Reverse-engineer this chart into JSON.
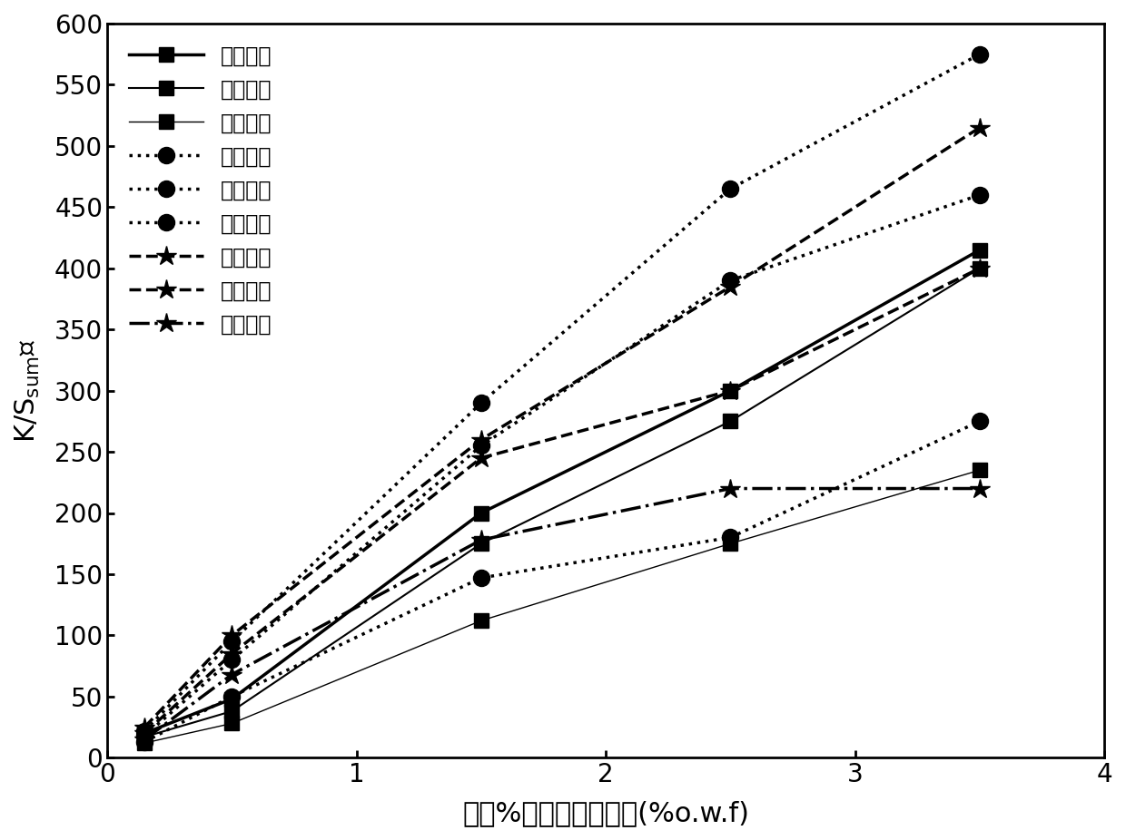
{
  "x_values": [
    0.15,
    0.5,
    1.5,
    2.5,
    3.5
  ],
  "series": [
    {
      "label": "水基紅色",
      "linestyle": "solid",
      "marker": "s",
      "linewidth": 2.5,
      "y": [
        20,
        48,
        200,
        300,
        415
      ]
    },
    {
      "label": "水基黃色",
      "linestyle": "solid",
      "marker": "s",
      "linewidth": 1.5,
      "y": [
        17,
        38,
        175,
        275,
        400
      ]
    },
    {
      "label": "水基藍色",
      "linestyle": "solid",
      "marker": "s",
      "linewidth": 1.0,
      "y": [
        12,
        28,
        112,
        175,
        235
      ]
    },
    {
      "label": "辛烷紅色",
      "linestyle": "dotted",
      "marker": "o",
      "linewidth": 2.5,
      "y": [
        22,
        95,
        290,
        465,
        575
      ]
    },
    {
      "label": "辛烷黃色",
      "linestyle": "dotted",
      "marker": "o",
      "linewidth": 2.5,
      "y": [
        18,
        80,
        255,
        390,
        460
      ]
    },
    {
      "label": "辛烷藍色",
      "linestyle": "dotted",
      "marker": "o",
      "linewidth": 2.5,
      "y": [
        13,
        50,
        147,
        180,
        275
      ]
    },
    {
      "label": "王烷紅色",
      "linestyle": "dashed",
      "marker": "*",
      "linewidth": 2.5,
      "y": [
        25,
        100,
        260,
        385,
        515
      ]
    },
    {
      "label": "王烷黃色",
      "linestyle": "dashed",
      "marker": "*",
      "linewidth": 2.5,
      "y": [
        20,
        85,
        245,
        300,
        400
      ]
    },
    {
      "label": "王烷藍色",
      "linestyle": "dashdot",
      "marker": "*",
      "linewidth": 2.5,
      "y": [
        15,
        68,
        178,
        220,
        220
      ]
    }
  ],
  "xlabel": "染料%對羊毛纖維重量(%o.w.f)",
  "ylabel_main": "K/S",
  "ylabel_sub": "sum",
  "ylabel_end": "値",
  "xlim": [
    0,
    4
  ],
  "ylim": [
    0,
    600
  ],
  "yticks": [
    0,
    50,
    100,
    150,
    200,
    250,
    300,
    350,
    400,
    450,
    500,
    550,
    600
  ],
  "xticks": [
    0,
    1,
    2,
    3,
    4
  ],
  "color": "#000000",
  "bg_color": "#ffffff",
  "tick_fontsize": 20,
  "label_fontsize": 22,
  "legend_fontsize": 17
}
